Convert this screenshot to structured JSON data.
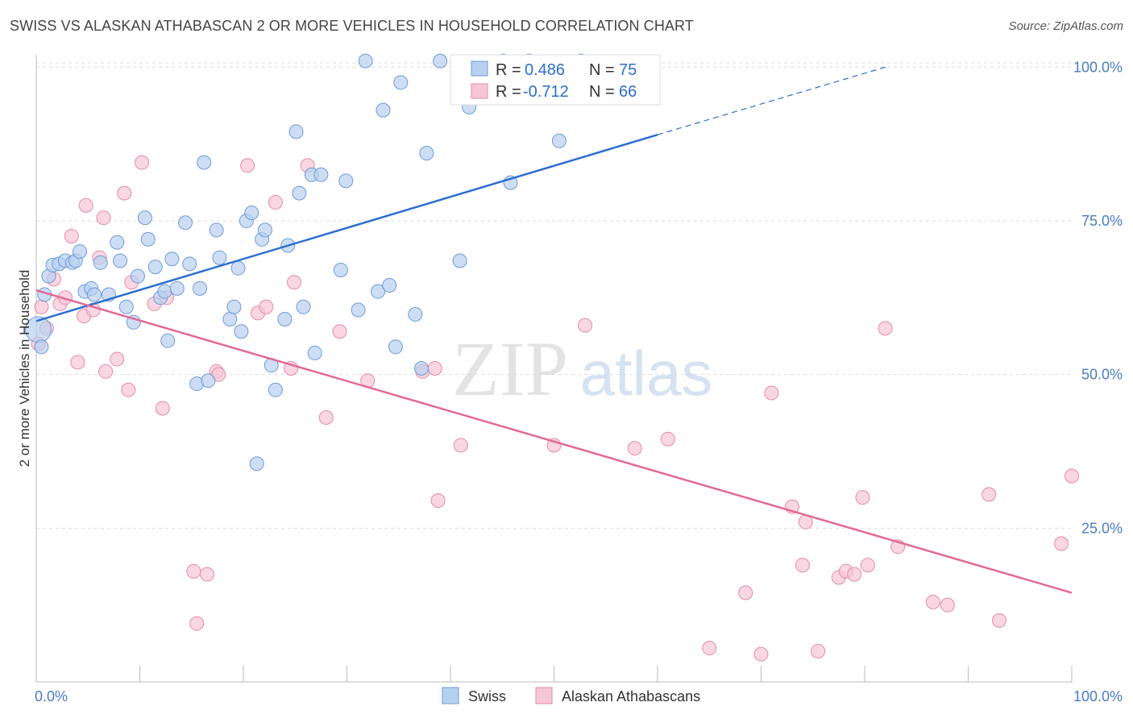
{
  "header": {
    "title": "SWISS VS ALASKAN ATHABASCAN 2 OR MORE VEHICLES IN HOUSEHOLD CORRELATION CHART",
    "source": "Source: ZipAtlas.com"
  },
  "watermark": {
    "zip": "ZIP",
    "atlas": "atlas"
  },
  "stats": {
    "rows": [
      {
        "r_label": "R =",
        "r_value": "0.486",
        "n_label": "N =",
        "n_value": "75"
      },
      {
        "r_label": "R =",
        "r_value": "-0.712",
        "n_label": "N =",
        "n_value": "66"
      }
    ]
  },
  "colors": {
    "swiss_fill": "#b8d0f0",
    "swiss_stroke": "#6f9ad8",
    "swiss_line": "#2a6fcf",
    "alaskan_fill": "#f7c6d6",
    "alaskan_stroke": "#e58aa8",
    "alaskan_line": "#e06a96",
    "axis_label": "#4a7cc4",
    "grid": "#dddddd"
  },
  "chart_data": {
    "type": "scatter",
    "title": "SWISS VS ALASKAN ATHABASCAN 2 OR MORE VEHICLES IN HOUSEHOLD CORRELATION CHART",
    "xlabel": "",
    "ylabel": "2 or more Vehicles in Household",
    "xlim": [
      0,
      100
    ],
    "ylim": [
      0,
      102
    ],
    "x_tick_labels": [
      "0.0%",
      "100.0%"
    ],
    "y_ticks": [
      25,
      50,
      75,
      100
    ],
    "y_tick_labels": [
      "25.0%",
      "50.0%",
      "75.0%",
      "100.0%"
    ],
    "grid": true,
    "legend_position": "bottom-center",
    "series": [
      {
        "name": "Swiss",
        "r": 0.486,
        "n": 75,
        "trend": {
          "x0": 0,
          "y0": 58.7,
          "x1": 60,
          "y1": 89.0,
          "dashed_to_x": 82.0,
          "dashed_to_y": 100.0
        },
        "points": [
          [
            0.2,
            57.3
          ],
          [
            0.8,
            63.0
          ],
          [
            1.2,
            66.0
          ],
          [
            1.6,
            67.8
          ],
          [
            2.2,
            68.0
          ],
          [
            2.8,
            68.5
          ],
          [
            3.5,
            68.2
          ],
          [
            3.8,
            68.5
          ],
          [
            4.2,
            70.0
          ],
          [
            4.7,
            63.5
          ],
          [
            5.3,
            64.0
          ],
          [
            5.6,
            63.0
          ],
          [
            6.2,
            68.2
          ],
          [
            7.0,
            63.0
          ],
          [
            7.8,
            71.5
          ],
          [
            8.1,
            68.5
          ],
          [
            8.7,
            61.0
          ],
          [
            9.4,
            58.5
          ],
          [
            9.8,
            66.0
          ],
          [
            10.5,
            75.5
          ],
          [
            10.8,
            72.0
          ],
          [
            11.5,
            67.5
          ],
          [
            12.0,
            62.5
          ],
          [
            12.4,
            63.5
          ],
          [
            12.7,
            55.5
          ],
          [
            13.1,
            68.8
          ],
          [
            13.6,
            64.0
          ],
          [
            14.4,
            74.7
          ],
          [
            14.8,
            68.0
          ],
          [
            15.5,
            48.5
          ],
          [
            15.8,
            64.0
          ],
          [
            16.2,
            84.5
          ],
          [
            16.6,
            49.0
          ],
          [
            17.4,
            73.5
          ],
          [
            17.7,
            69.0
          ],
          [
            18.7,
            59.0
          ],
          [
            19.1,
            61.0
          ],
          [
            19.5,
            67.3
          ],
          [
            19.8,
            57.0
          ],
          [
            20.3,
            75.0
          ],
          [
            20.8,
            76.3
          ],
          [
            21.3,
            35.5
          ],
          [
            21.8,
            72.0
          ],
          [
            22.1,
            73.5
          ],
          [
            22.7,
            51.5
          ],
          [
            23.1,
            47.5
          ],
          [
            24.0,
            59.0
          ],
          [
            24.3,
            71.0
          ],
          [
            25.1,
            89.5
          ],
          [
            25.4,
            79.5
          ],
          [
            25.8,
            61.0
          ],
          [
            26.6,
            82.5
          ],
          [
            26.9,
            53.5
          ],
          [
            27.5,
            82.5
          ],
          [
            29.4,
            67.0
          ],
          [
            29.9,
            81.5
          ],
          [
            31.1,
            60.5
          ],
          [
            31.8,
            101.0
          ],
          [
            33.0,
            63.5
          ],
          [
            33.5,
            93.0
          ],
          [
            34.1,
            64.5
          ],
          [
            34.7,
            54.5
          ],
          [
            35.2,
            97.5
          ],
          [
            36.6,
            59.8
          ],
          [
            37.2,
            51.0
          ],
          [
            37.7,
            86.0
          ],
          [
            39.0,
            101.0
          ],
          [
            40.9,
            68.5
          ],
          [
            41.8,
            93.5
          ],
          [
            45.1,
            101.0
          ],
          [
            45.8,
            81.2
          ],
          [
            47.6,
            101.0
          ],
          [
            50.5,
            88.0
          ],
          [
            52.6,
            101.0
          ],
          [
            0.5,
            54.5
          ]
        ]
      },
      {
        "name": "Alaskan Athabascans",
        "r": -0.712,
        "n": 66,
        "trend": {
          "x0": 0,
          "y0": 63.7,
          "x1": 100,
          "y1": 14.5
        },
        "points": [
          [
            0.2,
            55.0
          ],
          [
            0.5,
            61.0
          ],
          [
            1.0,
            57.5
          ],
          [
            1.7,
            65.5
          ],
          [
            2.3,
            61.5
          ],
          [
            2.8,
            62.5
          ],
          [
            3.4,
            72.5
          ],
          [
            4.0,
            52.0
          ],
          [
            4.6,
            59.5
          ],
          [
            4.8,
            77.5
          ],
          [
            5.5,
            60.5
          ],
          [
            6.1,
            69.0
          ],
          [
            6.5,
            75.5
          ],
          [
            6.7,
            50.5
          ],
          [
            7.8,
            52.5
          ],
          [
            8.5,
            79.5
          ],
          [
            8.9,
            47.5
          ],
          [
            9.2,
            65.0
          ],
          [
            10.2,
            84.5
          ],
          [
            11.4,
            61.5
          ],
          [
            12.2,
            44.5
          ],
          [
            12.6,
            62.5
          ],
          [
            15.2,
            18.0
          ],
          [
            15.5,
            9.5
          ],
          [
            16.5,
            17.5
          ],
          [
            17.4,
            50.5
          ],
          [
            17.6,
            50.0
          ],
          [
            20.4,
            84.0
          ],
          [
            21.4,
            60.0
          ],
          [
            22.2,
            61.0
          ],
          [
            23.1,
            78.0
          ],
          [
            24.6,
            51.0
          ],
          [
            24.9,
            65.0
          ],
          [
            26.2,
            84.0
          ],
          [
            28.0,
            43.0
          ],
          [
            29.3,
            57.0
          ],
          [
            32.0,
            49.0
          ],
          [
            37.3,
            50.5
          ],
          [
            38.5,
            51.0
          ],
          [
            38.8,
            29.5
          ],
          [
            41.0,
            38.5
          ],
          [
            50.0,
            38.5
          ],
          [
            53.0,
            58.0
          ],
          [
            57.8,
            38.0
          ],
          [
            61.0,
            39.5
          ],
          [
            65.0,
            5.5
          ],
          [
            68.5,
            14.5
          ],
          [
            70.0,
            4.5
          ],
          [
            71.0,
            47.0
          ],
          [
            73.0,
            28.5
          ],
          [
            74.0,
            19.0
          ],
          [
            74.3,
            26.0
          ],
          [
            75.5,
            5.0
          ],
          [
            77.5,
            17.0
          ],
          [
            78.2,
            18.0
          ],
          [
            79.0,
            17.5
          ],
          [
            79.8,
            30.0
          ],
          [
            80.3,
            19.0
          ],
          [
            82.0,
            57.5
          ],
          [
            83.2,
            22.0
          ],
          [
            86.6,
            13.0
          ],
          [
            88.0,
            12.5
          ],
          [
            92.0,
            30.5
          ],
          [
            93.0,
            10.0
          ],
          [
            99.0,
            22.5
          ],
          [
            100.0,
            33.5
          ]
        ]
      }
    ]
  }
}
